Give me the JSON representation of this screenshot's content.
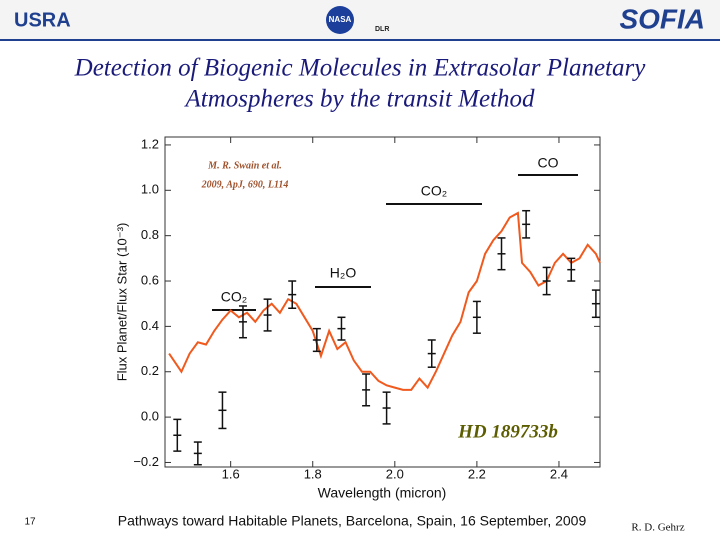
{
  "header": {
    "left_logo": "USRA",
    "center_logo": "NASA",
    "center_logo_2": "DLR",
    "right_logo": "SOFIA"
  },
  "title_lines": [
    "Detection of Biogenic Molecules in Extrasolar Planetary",
    "Atmospheres by the transit Method"
  ],
  "footer": {
    "page": "17",
    "text": "Pathways toward Habitable Planets, Barcelona, Spain, 16 September, 2009",
    "author": "R. D. Gehrz"
  },
  "chart_data": {
    "type": "line",
    "x_label": "Wavelength (micron)",
    "y_label": "Flux Planet/Flux Star (10⁻³)",
    "xlim": [
      1.44,
      2.5
    ],
    "ylim": [
      -0.22,
      1.235
    ],
    "xticks": [
      1.6,
      1.8,
      {
        "value": 2.0,
        "label": "2.0"
      },
      2.2,
      2.4
    ],
    "yticks": [
      {
        "value": -0.2,
        "label": "−0.2"
      },
      {
        "value": 0,
        "label": "0.0"
      },
      0.2,
      0.4,
      0.6,
      0.8,
      {
        "value": 1.0,
        "label": "1.0"
      },
      1.2
    ],
    "citation": [
      "M. R. Swain et al.",
      "2009, ApJ, 690, L114"
    ],
    "annotations": [
      "CO",
      "CO₂",
      "H₂O",
      "CO₂"
    ],
    "target": "HD 189733b",
    "line": {
      "color": "#f05a1e",
      "x": [
        1.45,
        1.48,
        1.5,
        1.52,
        1.54,
        1.56,
        1.58,
        1.6,
        1.62,
        1.64,
        1.66,
        1.68,
        1.7,
        1.72,
        1.74,
        1.76,
        1.78,
        1.8,
        1.82,
        1.84,
        1.86,
        1.88,
        1.9,
        1.92,
        1.94,
        1.96,
        1.98,
        2.0,
        2.02,
        2.04,
        2.06,
        2.08,
        2.1,
        2.12,
        2.14,
        2.16,
        2.18,
        2.2,
        2.22,
        2.24,
        2.26,
        2.28,
        2.3,
        2.31,
        2.33,
        2.35,
        2.37,
        2.39,
        2.41,
        2.43,
        2.45,
        2.47,
        2.49,
        2.5
      ],
      "values": [
        0.28,
        0.2,
        0.28,
        0.33,
        0.32,
        0.38,
        0.43,
        0.47,
        0.44,
        0.46,
        0.42,
        0.47,
        0.5,
        0.46,
        0.52,
        0.5,
        0.44,
        0.38,
        0.27,
        0.38,
        0.3,
        0.33,
        0.25,
        0.2,
        0.2,
        0.16,
        0.14,
        0.13,
        0.12,
        0.12,
        0.17,
        0.13,
        0.2,
        0.28,
        0.36,
        0.42,
        0.55,
        0.6,
        0.72,
        0.78,
        0.82,
        0.88,
        0.9,
        0.68,
        0.64,
        0.58,
        0.6,
        0.68,
        0.72,
        0.68,
        0.7,
        0.76,
        0.72,
        0.68
      ]
    },
    "points": {
      "color": "#111111",
      "x": [
        1.47,
        1.52,
        1.58,
        1.63,
        1.69,
        1.75,
        1.81,
        1.87,
        1.93,
        1.98,
        2.09,
        2.2,
        2.26,
        2.32,
        2.37,
        2.43,
        2.49
      ],
      "values": [
        -0.08,
        -0.16,
        0.03,
        0.42,
        0.45,
        0.54,
        0.34,
        0.39,
        0.12,
        0.04,
        0.28,
        0.44,
        0.72,
        0.85,
        0.6,
        0.65,
        0.5
      ],
      "errors": [
        0.07,
        0.05,
        0.08,
        0.07,
        0.07,
        0.06,
        0.05,
        0.05,
        0.07,
        0.07,
        0.06,
        0.07,
        0.07,
        0.06,
        0.06,
        0.05,
        0.06
      ]
    }
  }
}
